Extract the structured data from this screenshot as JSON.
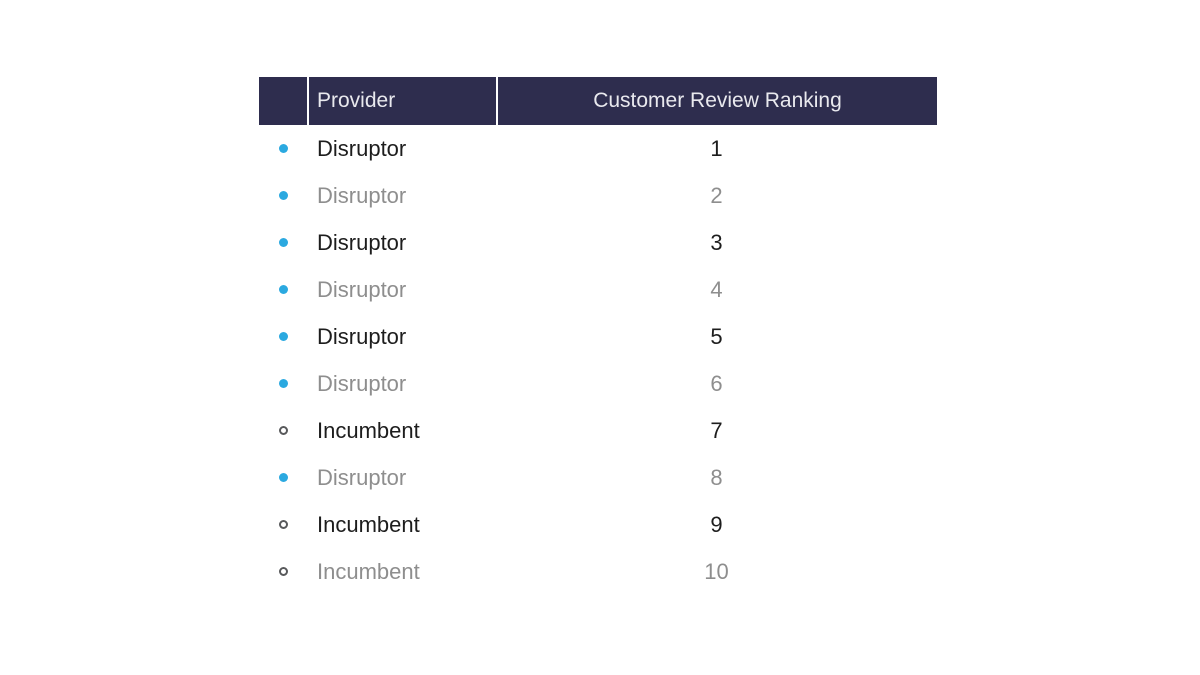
{
  "chart_data": {
    "type": "table",
    "title": "",
    "columns": [
      "",
      "Provider",
      "Customer Review Ranking"
    ],
    "rows": [
      {
        "provider": "Disruptor",
        "ranking": "1",
        "marker": "disruptor",
        "emphasis": "dark"
      },
      {
        "provider": "Disruptor",
        "ranking": "2",
        "marker": "disruptor",
        "emphasis": "gray"
      },
      {
        "provider": "Disruptor",
        "ranking": "3",
        "marker": "disruptor",
        "emphasis": "dark"
      },
      {
        "provider": "Disruptor",
        "ranking": "4",
        "marker": "disruptor",
        "emphasis": "gray"
      },
      {
        "provider": "Disruptor",
        "ranking": "5",
        "marker": "disruptor",
        "emphasis": "dark"
      },
      {
        "provider": "Disruptor",
        "ranking": "6",
        "marker": "disruptor",
        "emphasis": "gray"
      },
      {
        "provider": "Incumbent",
        "ranking": "7",
        "marker": "incumbent",
        "emphasis": "dark"
      },
      {
        "provider": "Disruptor",
        "ranking": "8",
        "marker": "disruptor",
        "emphasis": "gray"
      },
      {
        "provider": "Incumbent",
        "ranking": "9",
        "marker": "incumbent",
        "emphasis": "dark"
      },
      {
        "provider": "Incumbent",
        "ranking": "10",
        "marker": "incumbent",
        "emphasis": "gray"
      }
    ],
    "legend": {
      "disruptor_marker": "filled blue dot",
      "incumbent_marker": "open gray circle"
    }
  },
  "table": {
    "columns": [
      {
        "label": ""
      },
      {
        "label": "Provider"
      },
      {
        "label": "Customer Review Ranking"
      }
    ]
  },
  "colors": {
    "header_background": "#2e2d4e",
    "header_text": "#e9e9ee",
    "header_divider": "#ffffff",
    "row_text_dark": "#1d1d1d",
    "row_text_gray": "#8e8e8e",
    "disruptor_dot": "#2ba9e0",
    "incumbent_ring": "#58595b",
    "page_background": "#ffffff"
  }
}
